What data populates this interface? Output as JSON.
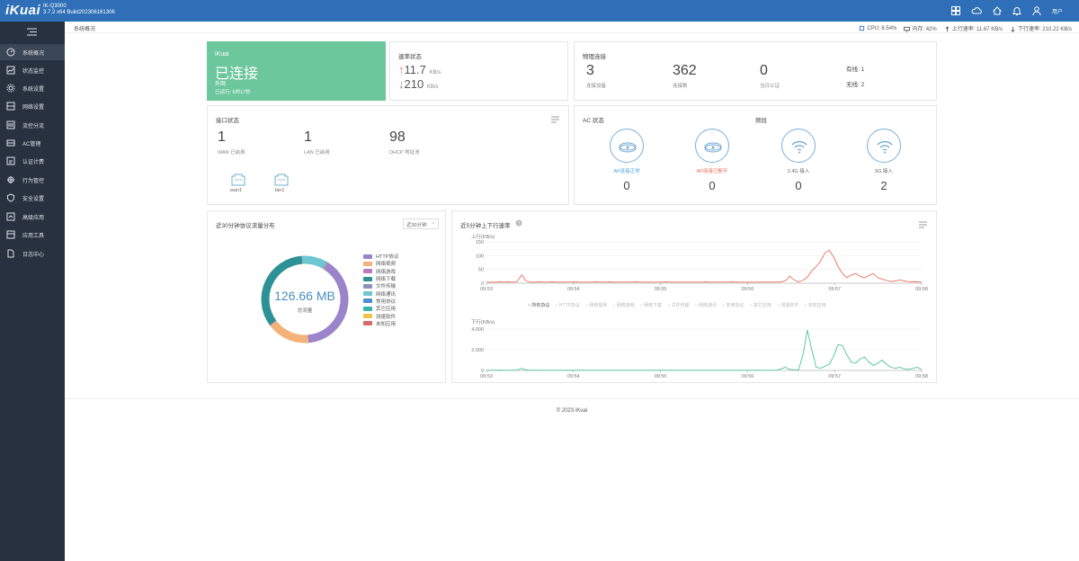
{
  "header": {
    "logo": "iKuai",
    "model": "IK-Q3000",
    "version": "3.7.2 x64 Build202306161306",
    "user": "用户"
  },
  "sidebar": {
    "items": [
      {
        "label": "系统概况",
        "icon": "dashboard-icon"
      },
      {
        "label": "状态监控",
        "icon": "monitor-icon"
      },
      {
        "label": "系统设置",
        "icon": "gear-icon"
      },
      {
        "label": "网络设置",
        "icon": "network-icon"
      },
      {
        "label": "流控分流",
        "icon": "flow-icon"
      },
      {
        "label": "AC管理",
        "icon": "ac-icon"
      },
      {
        "label": "认证计费",
        "icon": "auth-icon"
      },
      {
        "label": "行为管控",
        "icon": "behavior-icon"
      },
      {
        "label": "安全设置",
        "icon": "shield-icon"
      },
      {
        "label": "高级应用",
        "icon": "advanced-icon"
      },
      {
        "label": "应用工具",
        "icon": "tools-icon"
      },
      {
        "label": "日志中心",
        "icon": "log-icon"
      }
    ]
  },
  "breadcrumb": "系统概况",
  "stats": {
    "cpu": "CPU: 8.54%",
    "mem": "内存: 42%",
    "up": "上行速率: 11.67 KB/s",
    "down": "下行速率: 210.22 KB/s"
  },
  "status": {
    "brand": "iKuai",
    "state": "已连接",
    "net": "外网",
    "uptime": "已运行: 6时17秒"
  },
  "rate": {
    "title": "速率状态",
    "up": "11.7",
    "down": "210",
    "unit": "KB/s"
  },
  "physical": {
    "title": "物理连接",
    "devices": "3",
    "devices_label": "连接设备",
    "conns": "362",
    "conns_label": "连接数",
    "auth": "0",
    "auth_label": "当日认证",
    "wired": "有线: 1",
    "wireless": "无线: 2"
  },
  "ports": {
    "title": "接口状态",
    "wan": "1",
    "wan_label": "WAN 已启用",
    "lan": "1",
    "lan_label": "LAN 已启用",
    "dhcp": "98",
    "dhcp_label": "DHCP 地址池",
    "ifaces": [
      "wan1",
      "lan1"
    ]
  },
  "ac": {
    "title": "AC 状态",
    "band_title": "频段",
    "items": [
      {
        "label": "AP连接正常",
        "value": "0",
        "color": "#4aa3d9"
      },
      {
        "label": "AP连接已断开",
        "value": "0",
        "color": "#e96a5b"
      },
      {
        "label": "2.4G 接入",
        "value": "0",
        "color": "#666666"
      },
      {
        "label": "5G 接入",
        "value": "2",
        "color": "#666666"
      }
    ]
  },
  "protocol": {
    "title": "近30分钟协议流量分布",
    "select": "近30分钟",
    "total": "126.66 MB",
    "total_label": "总流量",
    "legend": [
      {
        "name": "HTTP协议",
        "color": "#9b84c9"
      },
      {
        "name": "网络视频",
        "color": "#f2b27a"
      },
      {
        "name": "网络游戏",
        "color": "#b97ab9"
      },
      {
        "name": "网络下载",
        "color": "#2e9196"
      },
      {
        "name": "文件传输",
        "color": "#8a93b8"
      },
      {
        "name": "网络通讯",
        "color": "#6cc7d3"
      },
      {
        "name": "常用协议",
        "color": "#4a8fd0"
      },
      {
        "name": "其它应用",
        "color": "#35b5a8"
      },
      {
        "name": "测速软件",
        "color": "#f0c24a"
      },
      {
        "name": "未知应用",
        "color": "#d66a6a"
      }
    ]
  },
  "speed": {
    "title": "近5分钟上下行速率",
    "up_label": "上行",
    "down_label": "下行",
    "unit": "(KB/s)",
    "tabs": [
      "所有协议",
      "HTTP协议",
      "网络视频",
      "网络游戏",
      "网络下载",
      "文件传输",
      "网络通讯",
      "常用协议",
      "其它应用",
      "测速软件",
      "未知应用"
    ]
  },
  "footer": "© 2023 iKuai",
  "chart_data": [
    {
      "type": "pie",
      "title": "近30分钟协议流量分布",
      "categories": [
        "HTTP协议",
        "网络视频",
        "网络游戏",
        "网络下载",
        "文件传输",
        "网络通讯",
        "常用协议",
        "其它应用",
        "测速软件",
        "未知应用"
      ],
      "values": [
        40,
        16,
        0.3,
        34,
        0.3,
        9,
        0.2,
        0.2,
        0.1,
        0.1
      ],
      "colors": [
        "#9b84c9",
        "#f2b27a",
        "#b97ab9",
        "#2e9196",
        "#8a93b8",
        "#6cc7d3",
        "#4a8fd0",
        "#35b5a8",
        "#f0c24a",
        "#d66a6a"
      ]
    },
    {
      "type": "line",
      "title": "上行",
      "ylabel": "(KB/s)",
      "ylim": [
        0,
        150
      ],
      "yticks": [
        "150",
        "100",
        "50",
        "0"
      ],
      "xticks": [
        "09:53",
        "09:54",
        "09:55",
        "09:56",
        "09:57",
        "09:58"
      ],
      "color": "#e8705f",
      "values": [
        4,
        4,
        4,
        5,
        4,
        5,
        4,
        6,
        30,
        8,
        4,
        4,
        5,
        4,
        4,
        5,
        4,
        4,
        4,
        4,
        5,
        4,
        4,
        4,
        4,
        5,
        4,
        4,
        5,
        4,
        4,
        4,
        4,
        4,
        5,
        4,
        4,
        4,
        4,
        4,
        4,
        5,
        4,
        4,
        4,
        4,
        4,
        4,
        4,
        4,
        5,
        4,
        4,
        4,
        4,
        4,
        5,
        4,
        4,
        4,
        4,
        4,
        4,
        4,
        4,
        4,
        4,
        5,
        8,
        25,
        12,
        5,
        10,
        22,
        45,
        60,
        80,
        110,
        120,
        95,
        60,
        35,
        20,
        30,
        35,
        25,
        20,
        28,
        35,
        20,
        15,
        10,
        6,
        8,
        12,
        8,
        6,
        5,
        5,
        4
      ]
    },
    {
      "type": "line",
      "title": "下行",
      "ylabel": "(KB/s)",
      "ylim": [
        0,
        4000
      ],
      "yticks": [
        "4,000",
        "2,000",
        "0"
      ],
      "xticks": [
        "09:53",
        "09:54",
        "09:55",
        "09:56",
        "09:57",
        "09:58"
      ],
      "color": "#4fc29e",
      "values": [
        20,
        20,
        20,
        30,
        20,
        20,
        20,
        30,
        200,
        40,
        20,
        20,
        20,
        20,
        20,
        20,
        20,
        20,
        20,
        20,
        20,
        20,
        20,
        20,
        20,
        20,
        20,
        20,
        20,
        20,
        20,
        20,
        20,
        20,
        20,
        20,
        20,
        20,
        20,
        20,
        20,
        20,
        20,
        20,
        20,
        20,
        20,
        20,
        20,
        20,
        20,
        20,
        20,
        20,
        20,
        20,
        20,
        20,
        20,
        20,
        20,
        20,
        20,
        20,
        20,
        20,
        20,
        150,
        300,
        100,
        60,
        50,
        1500,
        3900,
        2000,
        300,
        200,
        400,
        600,
        1400,
        2500,
        2400,
        1500,
        800,
        700,
        1100,
        1300,
        800,
        500,
        700,
        1000,
        600,
        300,
        200,
        300,
        150,
        100,
        200,
        300,
        100
      ]
    }
  ]
}
